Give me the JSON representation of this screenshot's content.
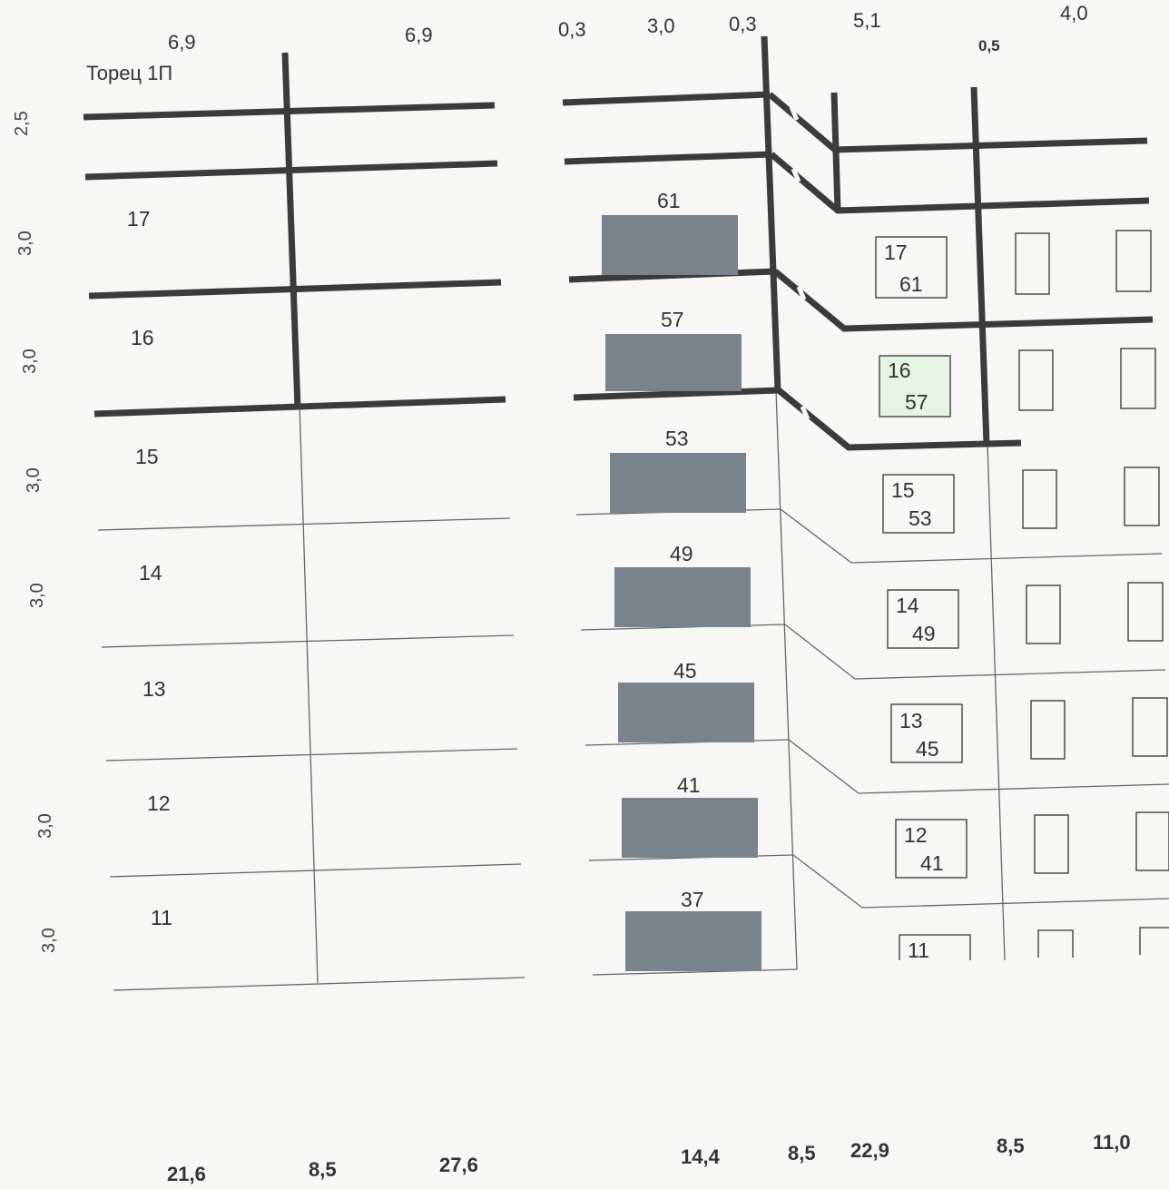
{
  "title": "Торец 1П",
  "top_dims": [
    "6,9",
    "6,9",
    "0,3",
    "3,0",
    "0,3",
    "5,1",
    "0,5",
    "4,0"
  ],
  "heights": [
    "2,5",
    "3,0",
    "3,0",
    "3,0",
    "3,0",
    "",
    "3,0",
    "3,0"
  ],
  "floors": [
    "17",
    "16",
    "15",
    "14",
    "13",
    "12",
    "11"
  ],
  "flats": [
    "61",
    "57",
    "53",
    "49",
    "45",
    "41",
    "37"
  ],
  "window_labels": [
    {
      "floor": "17",
      "flat": "61"
    },
    {
      "floor": "16",
      "flat": "57"
    },
    {
      "floor": "15",
      "flat": "53"
    },
    {
      "floor": "14",
      "flat": "49"
    },
    {
      "floor": "13",
      "flat": "45"
    },
    {
      "floor": "12",
      "flat": "41"
    },
    {
      "floor": "11",
      "flat": ""
    }
  ],
  "bottom_dims": [
    "21,6",
    "8,5",
    "27,6",
    "14,4",
    "8,5",
    "22,9",
    "8,5",
    "11,0"
  ],
  "colors": {
    "line": "#3b3b3b",
    "thin": "#666666",
    "block": "#7a838c",
    "highlight": "#e6f4e6"
  }
}
